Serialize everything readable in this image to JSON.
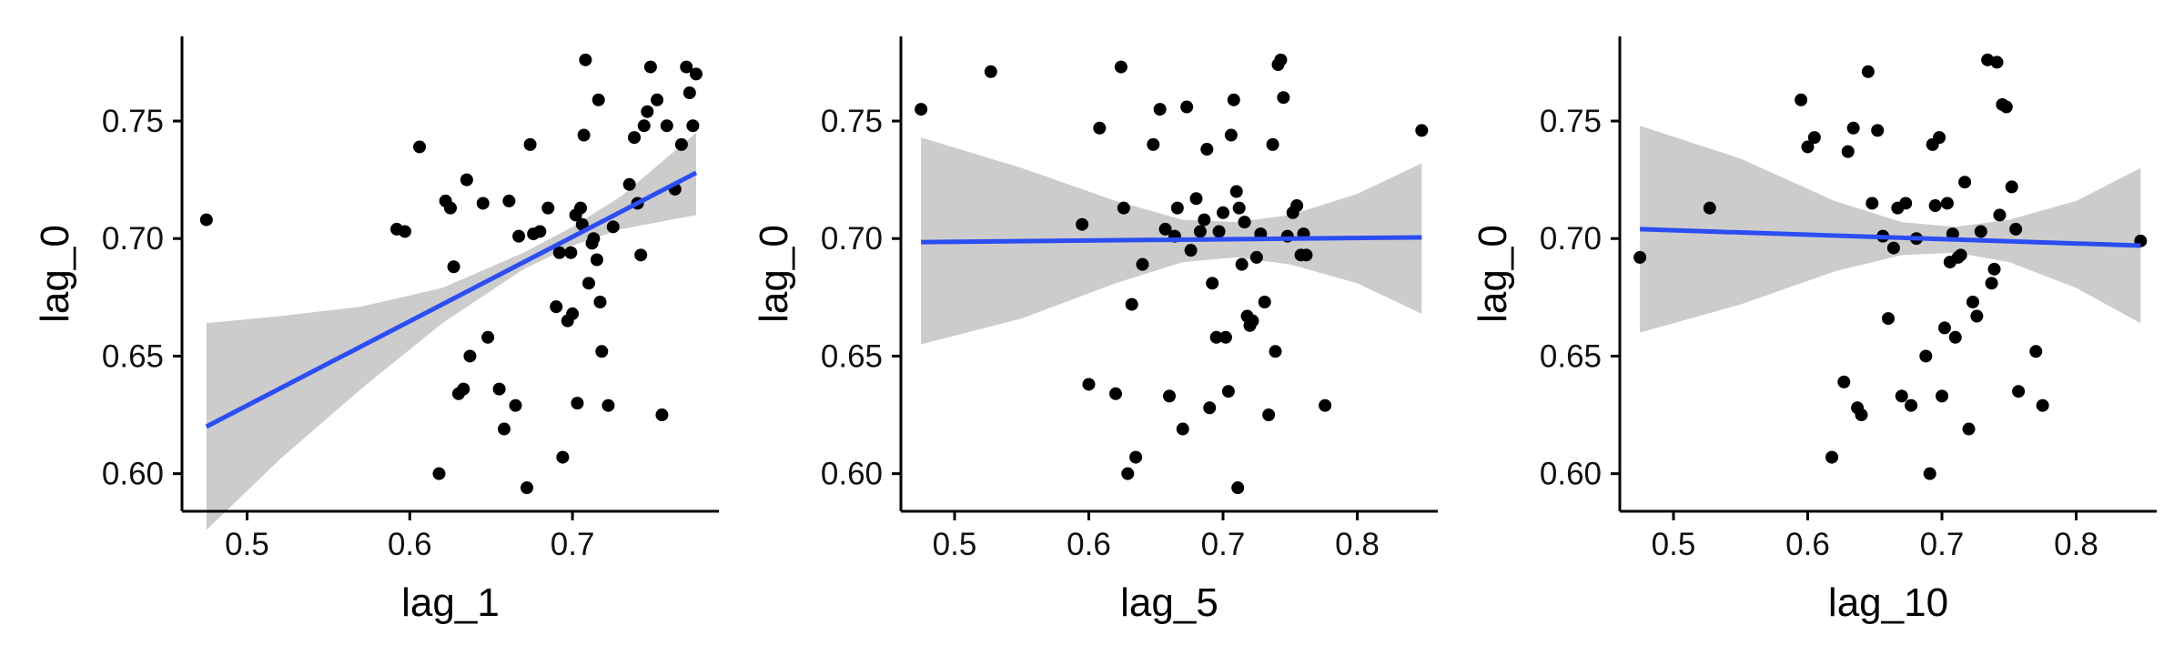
{
  "colors": {
    "points": "#000000",
    "fit_line": "#2b4df2",
    "band": "#cccccc"
  },
  "chart_data": [
    {
      "type": "scatter",
      "xlabel": "lag_1",
      "ylabel": "lag_0",
      "xlim": [
        0.46,
        0.79
      ],
      "ylim": [
        0.584,
        0.786
      ],
      "xticks": [
        0.5,
        0.6,
        0.7
      ],
      "yticks": [
        0.6,
        0.65,
        0.7,
        0.75
      ],
      "x_tick_labels": [
        "0.5",
        "0.6",
        "0.7"
      ],
      "y_tick_labels": [
        "0.60",
        "0.65",
        "0.70",
        "0.75"
      ],
      "grid": false,
      "fit": {
        "x": [
          0.475,
          0.776
        ],
        "y": [
          0.62,
          0.728
        ]
      },
      "band": {
        "x": [
          0.475,
          0.52,
          0.57,
          0.62,
          0.67,
          0.7,
          0.73,
          0.776
        ],
        "lower": [
          0.576,
          0.606,
          0.636,
          0.664,
          0.687,
          0.697,
          0.704,
          0.71
        ],
        "upper": [
          0.664,
          0.667,
          0.671,
          0.679,
          0.694,
          0.705,
          0.718,
          0.745
        ]
      },
      "points": {
        "x": [
          0.475,
          0.592,
          0.597,
          0.606,
          0.618,
          0.622,
          0.625,
          0.627,
          0.63,
          0.633,
          0.635,
          0.637,
          0.645,
          0.648,
          0.655,
          0.658,
          0.661,
          0.665,
          0.667,
          0.672,
          0.674,
          0.676,
          0.68,
          0.685,
          0.69,
          0.692,
          0.694,
          0.697,
          0.699,
          0.7,
          0.702,
          0.703,
          0.705,
          0.706,
          0.707,
          0.708,
          0.71,
          0.712,
          0.713,
          0.715,
          0.716,
          0.717,
          0.718,
          0.722,
          0.725,
          0.735,
          0.738,
          0.74,
          0.742,
          0.744,
          0.746,
          0.748,
          0.752,
          0.755,
          0.758,
          0.763,
          0.767,
          0.77,
          0.772,
          0.774,
          0.776
        ],
        "y": [
          0.708,
          0.704,
          0.703,
          0.739,
          0.6,
          0.716,
          0.713,
          0.688,
          0.634,
          0.636,
          0.725,
          0.65,
          0.715,
          0.658,
          0.636,
          0.619,
          0.716,
          0.629,
          0.701,
          0.594,
          0.74,
          0.702,
          0.703,
          0.713,
          0.671,
          0.694,
          0.607,
          0.665,
          0.694,
          0.668,
          0.71,
          0.63,
          0.713,
          0.706,
          0.744,
          0.776,
          0.681,
          0.698,
          0.7,
          0.691,
          0.759,
          0.673,
          0.652,
          0.629,
          0.705,
          0.723,
          0.743,
          0.715,
          0.693,
          0.748,
          0.754,
          0.773,
          0.759,
          0.625,
          0.748,
          0.721,
          0.74,
          0.773,
          0.762,
          0.748,
          0.77
        ]
      }
    },
    {
      "type": "scatter",
      "xlabel": "lag_5",
      "ylabel": "lag_0",
      "xlim": [
        0.46,
        0.86
      ],
      "ylim": [
        0.584,
        0.786
      ],
      "xticks": [
        0.5,
        0.6,
        0.7,
        0.8
      ],
      "yticks": [
        0.6,
        0.65,
        0.7,
        0.75
      ],
      "x_tick_labels": [
        "0.5",
        "0.6",
        "0.7",
        "0.8"
      ],
      "y_tick_labels": [
        "0.60",
        "0.65",
        "0.70",
        "0.75"
      ],
      "grid": false,
      "fit": {
        "x": [
          0.475,
          0.848
        ],
        "y": [
          0.6985,
          0.7005
        ]
      },
      "band": {
        "x": [
          0.475,
          0.55,
          0.62,
          0.67,
          0.71,
          0.75,
          0.8,
          0.848
        ],
        "lower": [
          0.655,
          0.666,
          0.681,
          0.69,
          0.692,
          0.689,
          0.681,
          0.668
        ],
        "upper": [
          0.743,
          0.73,
          0.716,
          0.708,
          0.707,
          0.71,
          0.719,
          0.732
        ]
      },
      "points": {
        "x": [
          0.475,
          0.527,
          0.595,
          0.6,
          0.608,
          0.62,
          0.624,
          0.626,
          0.629,
          0.632,
          0.635,
          0.64,
          0.648,
          0.653,
          0.657,
          0.66,
          0.664,
          0.666,
          0.67,
          0.673,
          0.676,
          0.68,
          0.683,
          0.686,
          0.688,
          0.69,
          0.692,
          0.695,
          0.697,
          0.7,
          0.702,
          0.704,
          0.706,
          0.708,
          0.71,
          0.711,
          0.712,
          0.714,
          0.716,
          0.718,
          0.72,
          0.722,
          0.725,
          0.728,
          0.731,
          0.734,
          0.737,
          0.739,
          0.741,
          0.743,
          0.745,
          0.748,
          0.752,
          0.755,
          0.758,
          0.76,
          0.762,
          0.776,
          0.848
        ],
        "y": [
          0.755,
          0.771,
          0.706,
          0.638,
          0.747,
          0.634,
          0.773,
          0.713,
          0.6,
          0.672,
          0.607,
          0.689,
          0.74,
          0.755,
          0.704,
          0.633,
          0.701,
          0.713,
          0.619,
          0.756,
          0.695,
          0.717,
          0.703,
          0.708,
          0.738,
          0.628,
          0.681,
          0.658,
          0.703,
          0.711,
          0.658,
          0.635,
          0.744,
          0.759,
          0.72,
          0.594,
          0.713,
          0.689,
          0.707,
          0.667,
          0.663,
          0.665,
          0.692,
          0.702,
          0.673,
          0.625,
          0.74,
          0.652,
          0.774,
          0.776,
          0.76,
          0.701,
          0.711,
          0.714,
          0.693,
          0.702,
          0.693,
          0.629,
          0.746
        ]
      }
    },
    {
      "type": "scatter",
      "xlabel": "lag_10",
      "ylabel": "lag_0",
      "xlim": [
        0.46,
        0.86
      ],
      "ylim": [
        0.584,
        0.786
      ],
      "xticks": [
        0.5,
        0.6,
        0.7,
        0.8
      ],
      "yticks": [
        0.6,
        0.65,
        0.7,
        0.75
      ],
      "x_tick_labels": [
        "0.5",
        "0.6",
        "0.7",
        "0.8"
      ],
      "y_tick_labels": [
        "0.60",
        "0.65",
        "0.70",
        "0.75"
      ],
      "grid": false,
      "fit": {
        "x": [
          0.475,
          0.848
        ],
        "y": [
          0.704,
          0.697
        ]
      },
      "band": {
        "x": [
          0.475,
          0.55,
          0.62,
          0.67,
          0.71,
          0.75,
          0.8,
          0.848
        ],
        "lower": [
          0.66,
          0.672,
          0.686,
          0.693,
          0.694,
          0.69,
          0.679,
          0.664
        ],
        "upper": [
          0.748,
          0.734,
          0.716,
          0.707,
          0.705,
          0.708,
          0.716,
          0.73
        ]
      },
      "points": {
        "x": [
          0.475,
          0.527,
          0.595,
          0.6,
          0.605,
          0.618,
          0.627,
          0.63,
          0.634,
          0.637,
          0.64,
          0.645,
          0.648,
          0.652,
          0.656,
          0.66,
          0.664,
          0.667,
          0.67,
          0.673,
          0.677,
          0.681,
          0.688,
          0.691,
          0.693,
          0.695,
          0.698,
          0.7,
          0.702,
          0.704,
          0.706,
          0.708,
          0.71,
          0.712,
          0.714,
          0.717,
          0.72,
          0.723,
          0.726,
          0.729,
          0.734,
          0.737,
          0.739,
          0.741,
          0.743,
          0.745,
          0.748,
          0.752,
          0.755,
          0.757,
          0.77,
          0.775,
          0.848
        ],
        "y": [
          0.692,
          0.713,
          0.759,
          0.739,
          0.743,
          0.607,
          0.639,
          0.737,
          0.747,
          0.628,
          0.625,
          0.771,
          0.715,
          0.746,
          0.701,
          0.666,
          0.696,
          0.713,
          0.633,
          0.715,
          0.629,
          0.7,
          0.65,
          0.6,
          0.74,
          0.714,
          0.743,
          0.633,
          0.662,
          0.715,
          0.69,
          0.702,
          0.658,
          0.692,
          0.693,
          0.724,
          0.619,
          0.673,
          0.667,
          0.703,
          0.776,
          0.681,
          0.687,
          0.775,
          0.71,
          0.757,
          0.756,
          0.722,
          0.704,
          0.635,
          0.652,
          0.629,
          0.699
        ]
      }
    }
  ]
}
